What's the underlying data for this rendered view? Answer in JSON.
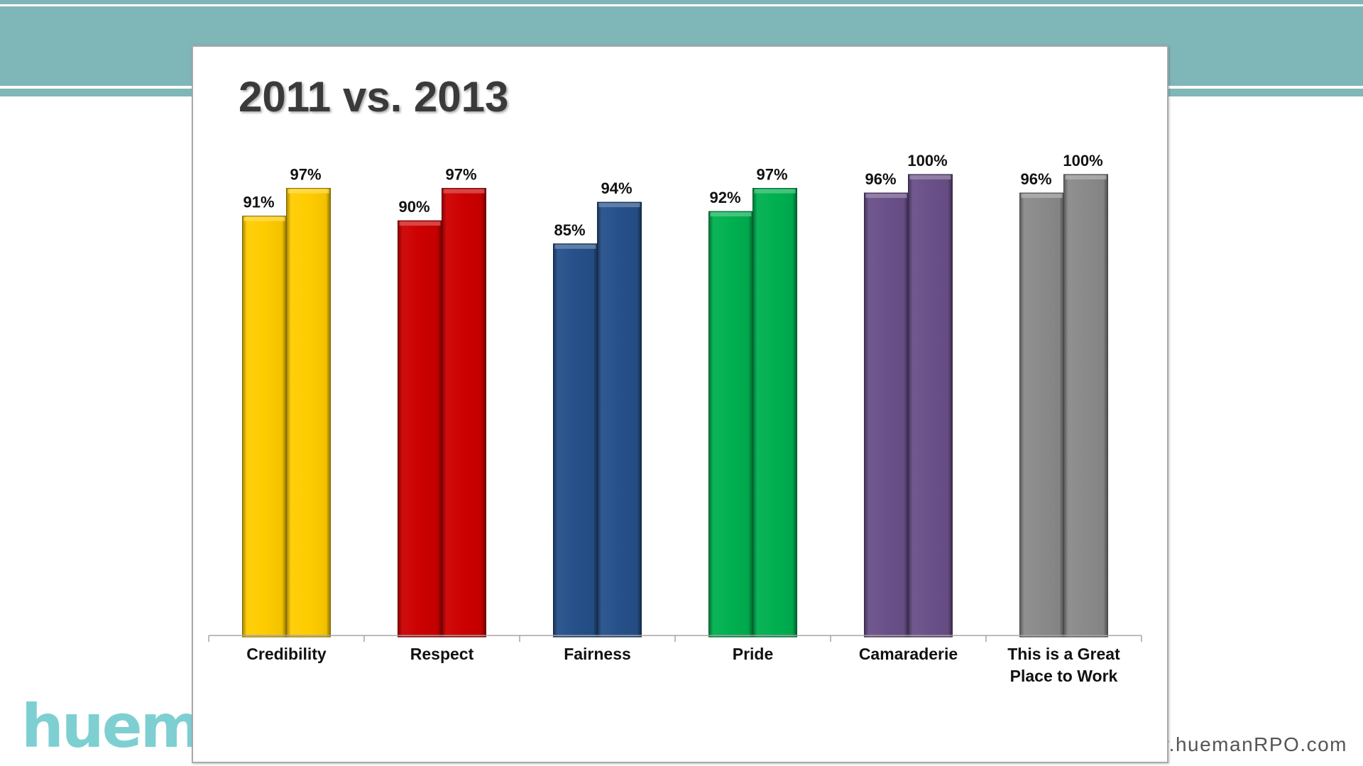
{
  "brand": {
    "logo_text": "hueman",
    "url_text": "www.huemanRPO.com"
  },
  "chart_data": {
    "type": "bar",
    "title": "2011 vs. 2013",
    "categories": [
      [
        "Credibility"
      ],
      [
        "Respect"
      ],
      [
        "Fairness"
      ],
      [
        "Pride"
      ],
      [
        "Camaraderie"
      ],
      [
        "This is a Great",
        "Place to Work"
      ]
    ],
    "series": [
      {
        "values": [
          91,
          90,
          85,
          92,
          96,
          96
        ],
        "labels": [
          "91%",
          "90%",
          "85%",
          "92%",
          "96%",
          "96%"
        ]
      },
      {
        "values": [
          97,
          97,
          94,
          97,
          100,
          100
        ],
        "labels": [
          "97%",
          "97%",
          "94%",
          "97%",
          "100%",
          "100%"
        ]
      }
    ],
    "category_colors": [
      "#ffcc00",
      "#cc0000",
      "#26508a",
      "#00b050",
      "#6a5089",
      "#8a8a8a"
    ],
    "ylim": [
      0,
      100
    ],
    "grid": false,
    "legend": "none"
  }
}
